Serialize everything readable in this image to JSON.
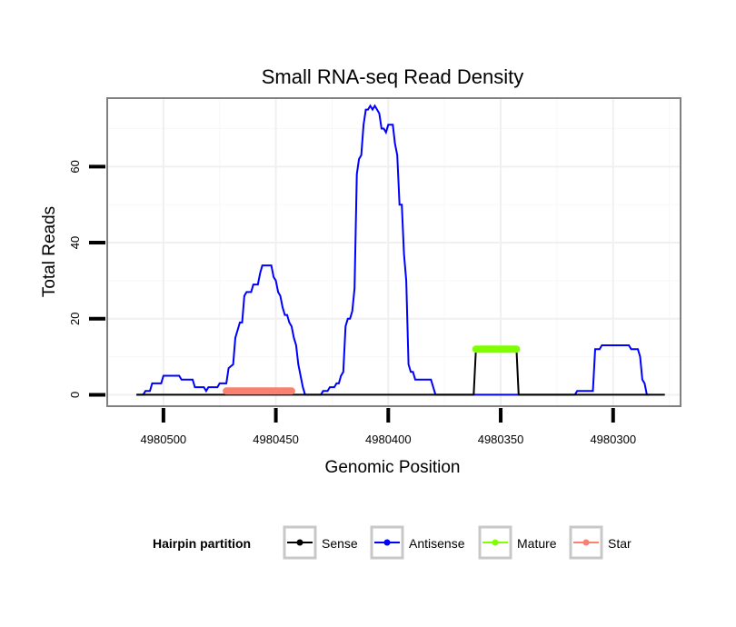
{
  "chart_data": {
    "type": "line",
    "title": "Small RNA-seq Read Density",
    "xlabel": "Genomic Position",
    "ylabel": "Total Reads",
    "x_reversed": true,
    "xlim": [
      4980525,
      4980270
    ],
    "ylim": [
      -3,
      78
    ],
    "xticks": [
      4980500,
      4980450,
      4980400,
      4980350,
      4980300
    ],
    "xtick_labels": [
      "4980500",
      "4980450",
      "4980400",
      "4980350",
      "4980300"
    ],
    "yticks": [
      0,
      20,
      40,
      60
    ],
    "ytick_labels": [
      "0",
      "20",
      "40",
      "60"
    ],
    "grid": true,
    "legend": {
      "title": "Hairpin partition",
      "position": "bottom",
      "entries": [
        {
          "label": "Sense",
          "color": "#000000"
        },
        {
          "label": "Antisense",
          "color": "#0000ff"
        },
        {
          "label": "Mature",
          "color": "#7fff00"
        },
        {
          "label": "Star",
          "color": "#fa8072"
        }
      ]
    },
    "series": [
      {
        "name": "Antisense",
        "color": "#0000ff",
        "points": [
          [
            4980512,
            0
          ],
          [
            4980509,
            0
          ],
          [
            4980508,
            1
          ],
          [
            4980506,
            1
          ],
          [
            4980505,
            3
          ],
          [
            4980501,
            3
          ],
          [
            4980500,
            5
          ],
          [
            4980493,
            5
          ],
          [
            4980492,
            4
          ],
          [
            4980487,
            4
          ],
          [
            4980486,
            2
          ],
          [
            4980482,
            2
          ],
          [
            4980481,
            1
          ],
          [
            4980480,
            2
          ],
          [
            4980476,
            2
          ],
          [
            4980475,
            3
          ],
          [
            4980472,
            3
          ],
          [
            4980471,
            7
          ],
          [
            4980469,
            8
          ],
          [
            4980468,
            15
          ],
          [
            4980466,
            19
          ],
          [
            4980465,
            19
          ],
          [
            4980464,
            26
          ],
          [
            4980463,
            27
          ],
          [
            4980461,
            27
          ],
          [
            4980460,
            29
          ],
          [
            4980458,
            29
          ],
          [
            4980457,
            32
          ],
          [
            4980456,
            34
          ],
          [
            4980452,
            34
          ],
          [
            4980451,
            31
          ],
          [
            4980450,
            30
          ],
          [
            4980449,
            27
          ],
          [
            4980448,
            26
          ],
          [
            4980447,
            23
          ],
          [
            4980446,
            21
          ],
          [
            4980445,
            21
          ],
          [
            4980444,
            19
          ],
          [
            4980443,
            18
          ],
          [
            4980442,
            15
          ],
          [
            4980441,
            13
          ],
          [
            4980440,
            8
          ],
          [
            4980439,
            5
          ],
          [
            4980438,
            2
          ],
          [
            4980437,
            0
          ],
          [
            4980430,
            0
          ],
          [
            4980429,
            1
          ],
          [
            4980427,
            1
          ],
          [
            4980426,
            2
          ],
          [
            4980424,
            2
          ],
          [
            4980423,
            3
          ],
          [
            4980422,
            3
          ],
          [
            4980421,
            5
          ],
          [
            4980420,
            6
          ],
          [
            4980419,
            18
          ],
          [
            4980418,
            20
          ],
          [
            4980417,
            20
          ],
          [
            4980416,
            22
          ],
          [
            4980415,
            28
          ],
          [
            4980414,
            58
          ],
          [
            4980413,
            62
          ],
          [
            4980412,
            63
          ],
          [
            4980411,
            71
          ],
          [
            4980410,
            75
          ],
          [
            4980409,
            75
          ],
          [
            4980408,
            76
          ],
          [
            4980407,
            75
          ],
          [
            4980406,
            76
          ],
          [
            4980404,
            74
          ],
          [
            4980403,
            70
          ],
          [
            4980402,
            70
          ],
          [
            4980401,
            69
          ],
          [
            4980400,
            71
          ],
          [
            4980398,
            71
          ],
          [
            4980397,
            66
          ],
          [
            4980396,
            63
          ],
          [
            4980395,
            50
          ],
          [
            4980394,
            50
          ],
          [
            4980393,
            37
          ],
          [
            4980392,
            30
          ],
          [
            4980391,
            8
          ],
          [
            4980390,
            6
          ],
          [
            4980389,
            6
          ],
          [
            4980388,
            4
          ],
          [
            4980387,
            4
          ],
          [
            4980385,
            4
          ],
          [
            4980384,
            4
          ],
          [
            4980382,
            4
          ],
          [
            4980381,
            4
          ],
          [
            4980380,
            2
          ],
          [
            4980379,
            0
          ],
          [
            4980336,
            0
          ],
          [
            4980317,
            0
          ],
          [
            4980316,
            1
          ],
          [
            4980309,
            1
          ],
          [
            4980308,
            12
          ],
          [
            4980306,
            12
          ],
          [
            4980305,
            13
          ],
          [
            4980293,
            13
          ],
          [
            4980292,
            12
          ],
          [
            4980289,
            12
          ],
          [
            4980288,
            10
          ],
          [
            4980287,
            4
          ],
          [
            4980286,
            3
          ],
          [
            4980285,
            0
          ],
          [
            4980284,
            0
          ]
        ]
      },
      {
        "name": "Sense",
        "color": "#000000",
        "points": [
          [
            4980512,
            0
          ],
          [
            4980362,
            0
          ],
          [
            4980361,
            12
          ],
          [
            4980343,
            12
          ],
          [
            4980342,
            0
          ],
          [
            4980277,
            0
          ]
        ]
      },
      {
        "name": "Mature",
        "color": "#7fff00",
        "points": [
          [
            4980361,
            12
          ],
          [
            4980343,
            12
          ]
        ]
      },
      {
        "name": "Star",
        "color": "#fa8072",
        "points": [
          [
            4980472,
            1
          ],
          [
            4980443,
            1
          ]
        ]
      }
    ]
  }
}
